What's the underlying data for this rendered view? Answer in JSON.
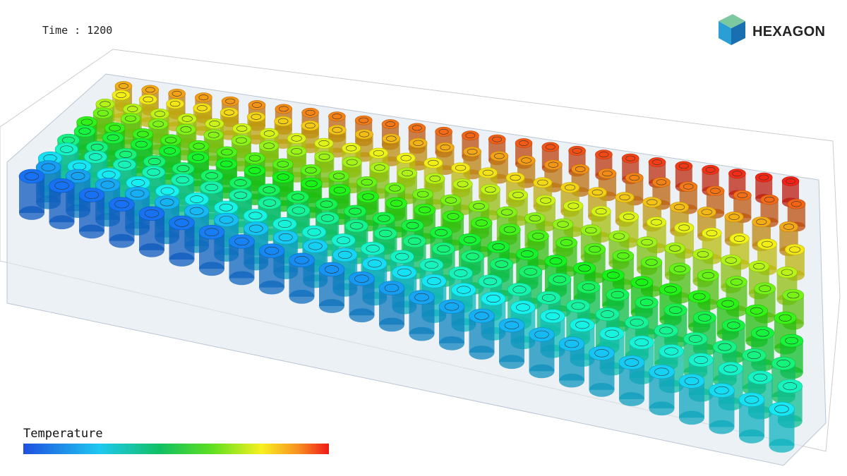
{
  "time_label": "Time : 1200",
  "logo": {
    "text": "HEXAGON"
  },
  "legend": {
    "title": "Temperature"
  }
}
